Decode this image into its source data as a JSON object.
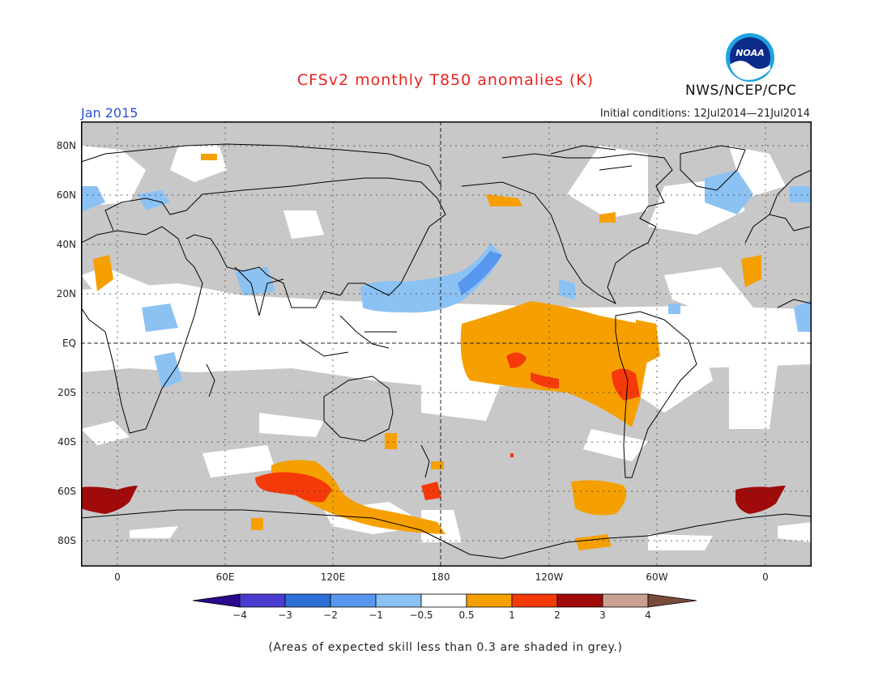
{
  "header": {
    "title": "CFSv2 monthly T850 anomalies (K)",
    "period": "Jan 2015",
    "initial_conditions": "Initial conditions: 12Jul2014—21Jul2014",
    "agency": "NWS/NCEP/CPC",
    "logo_text": "NOAA"
  },
  "map": {
    "lat_labels": [
      "80N",
      "60N",
      "40N",
      "20N",
      "EQ",
      "20S",
      "40S",
      "60S",
      "80S"
    ],
    "lon_labels": [
      "0",
      "60E",
      "120E",
      "180",
      "120W",
      "60W",
      "0"
    ],
    "grey_meaning": "skill < 0.3"
  },
  "colorbar": {
    "levels": [
      "−4",
      "−3",
      "−2",
      "−1",
      "−0.5",
      "0.5",
      "1",
      "2",
      "3",
      "4"
    ],
    "colors": [
      "#2a0a8c",
      "#4a3ccf",
      "#2e6fd8",
      "#5797ee",
      "#8cc2f3",
      "#ffffff",
      "#f5a000",
      "#f53a0a",
      "#a00a0a",
      "#caa090",
      "#7a4a3a"
    ]
  },
  "footer": {
    "note": "(Areas of expected skill less than 0.3 are shaded in grey.)"
  }
}
